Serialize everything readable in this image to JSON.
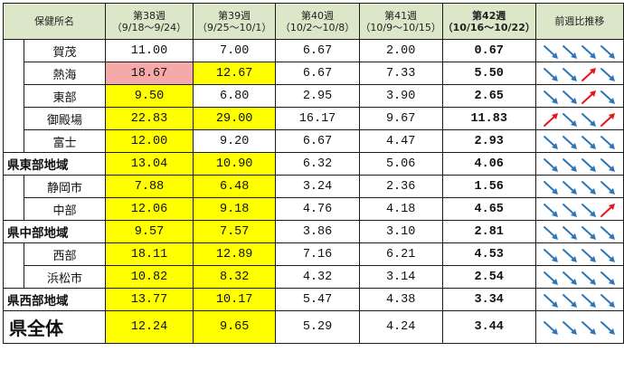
{
  "header": {
    "col_name": "保健所名",
    "weeks": [
      {
        "label": "第38週",
        "range": "（9/18～9/24）"
      },
      {
        "label": "第39週",
        "range": "（9/25～10/1）"
      },
      {
        "label": "第40週",
        "range": "（10/2～10/8）"
      },
      {
        "label": "第41週",
        "range": "（10/9～10/15）"
      },
      {
        "label": "第42週",
        "range": "（10/16～10/22）"
      }
    ],
    "trend": "前週比推移"
  },
  "colors": {
    "header_bg": "#dce6c8",
    "highlight_yellow": "#ffff00",
    "highlight_pink": "#f6a9a9",
    "arrow_down": "#2e75b6",
    "arrow_up": "#e8141b"
  },
  "rows": [
    {
      "name": "賀茂",
      "values": [
        "11.00",
        "7.00",
        "6.67",
        "2.00",
        "0.67"
      ],
      "trend": [
        "down",
        "down",
        "down",
        "down"
      ]
    },
    {
      "name": "熱海",
      "values": [
        "18.67",
        "12.67",
        "6.67",
        "7.33",
        "5.50"
      ],
      "trend": [
        "down",
        "down",
        "up",
        "down"
      ]
    },
    {
      "name": "東部",
      "values": [
        "9.50",
        "6.80",
        "2.95",
        "3.90",
        "2.65"
      ],
      "trend": [
        "down",
        "down",
        "up",
        "down"
      ]
    },
    {
      "name": "御殿場",
      "values": [
        "22.83",
        "29.00",
        "16.17",
        "9.67",
        "11.83"
      ],
      "trend": [
        "up",
        "down",
        "down",
        "up"
      ]
    },
    {
      "name": "富士",
      "values": [
        "12.00",
        "9.20",
        "6.67",
        "4.47",
        "2.93"
      ],
      "trend": [
        "down",
        "down",
        "down",
        "down"
      ]
    },
    {
      "name": "県東部地域",
      "values": [
        "13.04",
        "10.90",
        "6.32",
        "5.06",
        "4.06"
      ],
      "trend": [
        "down",
        "down",
        "down",
        "down"
      ]
    },
    {
      "name": "静岡市",
      "values": [
        "7.88",
        "6.48",
        "3.24",
        "2.36",
        "1.56"
      ],
      "trend": [
        "down",
        "down",
        "down",
        "down"
      ]
    },
    {
      "name": "中部",
      "values": [
        "12.06",
        "9.18",
        "4.76",
        "4.18",
        "4.65"
      ],
      "trend": [
        "down",
        "down",
        "down",
        "up"
      ]
    },
    {
      "name": "県中部地域",
      "values": [
        "9.57",
        "7.57",
        "3.86",
        "3.10",
        "2.81"
      ],
      "trend": [
        "down",
        "down",
        "down",
        "down"
      ]
    },
    {
      "name": "西部",
      "values": [
        "18.11",
        "12.89",
        "7.16",
        "6.21",
        "4.53"
      ],
      "trend": [
        "down",
        "down",
        "down",
        "down"
      ]
    },
    {
      "name": "浜松市",
      "values": [
        "10.82",
        "8.32",
        "4.32",
        "3.14",
        "2.54"
      ],
      "trend": [
        "down",
        "down",
        "down",
        "down"
      ]
    },
    {
      "name": "県西部地域",
      "values": [
        "13.77",
        "10.17",
        "5.47",
        "4.38",
        "3.34"
      ],
      "trend": [
        "down",
        "down",
        "down",
        "down"
      ]
    },
    {
      "name": "県全体",
      "values": [
        "12.24",
        "9.65",
        "5.29",
        "4.24",
        "3.44"
      ],
      "trend": [
        "down",
        "down",
        "down",
        "down"
      ]
    }
  ]
}
